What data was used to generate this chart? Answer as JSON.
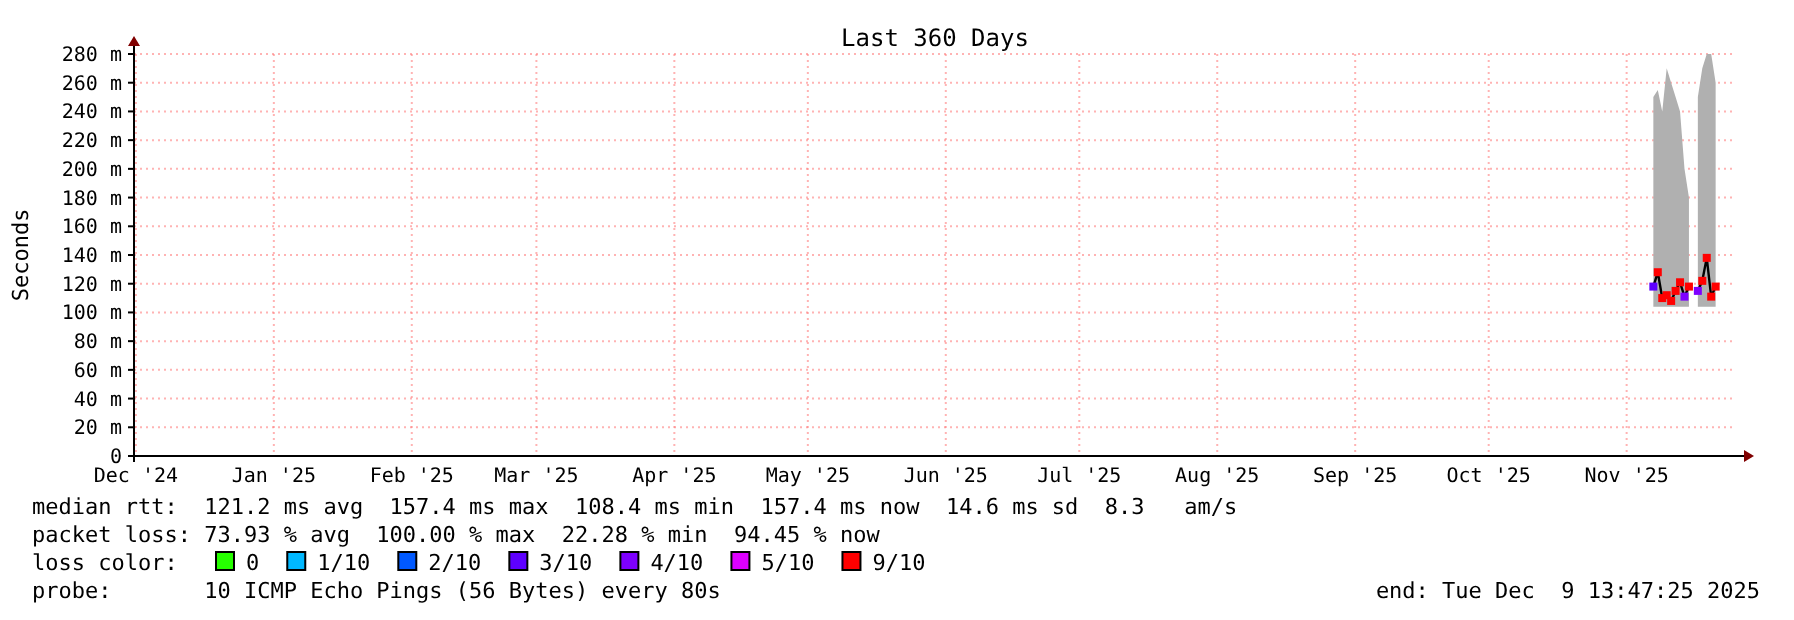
{
  "chart_data": {
    "type": "line",
    "title": "Last 360 Days",
    "ylabel": "Seconds",
    "x": [
      "2025-11-21",
      "2025-11-22",
      "2025-11-23",
      "2025-11-24",
      "2025-11-25",
      "2025-11-26",
      "2025-11-27",
      "2025-11-28",
      "2025-11-29",
      "2025-11-30",
      "2025-12-01",
      "2025-12-02",
      "2025-12-03",
      "2025-12-04",
      "2025-12-05"
    ],
    "xlim": [
      "2024-12-14T13:47",
      "2025-12-09T13:47"
    ],
    "xticks": [
      {
        "value": "2024-12-15",
        "label": "Dec '24"
      },
      {
        "value": "2025-01-15",
        "label": "Jan '25"
      },
      {
        "value": "2025-02-15",
        "label": "Feb '25"
      },
      {
        "value": "2025-03-15",
        "label": "Mar '25"
      },
      {
        "value": "2025-04-15",
        "label": "Apr '25"
      },
      {
        "value": "2025-05-15",
        "label": "May '25"
      },
      {
        "value": "2025-06-15",
        "label": "Jun '25"
      },
      {
        "value": "2025-07-15",
        "label": "Jul '25"
      },
      {
        "value": "2025-08-15",
        "label": "Aug '25"
      },
      {
        "value": "2025-09-15",
        "label": "Sep '25"
      },
      {
        "value": "2025-10-15",
        "label": "Oct '25"
      },
      {
        "value": "2025-11-15",
        "label": "Nov '25"
      }
    ],
    "ylim": [
      0,
      280
    ],
    "yticks": [
      0,
      {
        "value": 20,
        "label": "20 m"
      },
      {
        "value": 40,
        "label": "40 m"
      },
      {
        "value": 60,
        "label": "60 m"
      },
      {
        "value": 80,
        "label": "80 m"
      },
      {
        "value": 100,
        "label": "100 m"
      },
      {
        "value": 120,
        "label": "120 m"
      },
      {
        "value": 140,
        "label": "140 m"
      },
      {
        "value": 160,
        "label": "160 m"
      },
      {
        "value": 180,
        "label": "180 m"
      },
      {
        "value": 200,
        "label": "200 m"
      },
      {
        "value": 220,
        "label": "220 m"
      },
      {
        "value": 240,
        "label": "240 m"
      },
      {
        "value": 260,
        "label": "260 m"
      },
      {
        "value": 280,
        "label": "280 m"
      }
    ],
    "grid": true,
    "legend": "bottom",
    "legend_title": "loss color:",
    "series": [
      {
        "color": "#000000",
        "values": [
          118,
          128,
          110,
          112,
          108,
          115,
          121,
          111,
          118,
          null,
          115,
          122,
          138,
          111,
          118
        ],
        "lower": [
          104,
          104,
          104,
          104,
          104,
          104,
          104,
          104,
          104,
          null,
          104,
          104,
          104,
          104,
          104
        ],
        "upper": [
          250,
          255,
          240,
          270,
          260,
          250,
          240,
          200,
          180,
          null,
          250,
          270,
          280,
          280,
          260
        ]
      },
      {
        "type": "scatter",
        "name": "0",
        "color": "#26ff00",
        "values": [
          null,
          null,
          null,
          null,
          null,
          null,
          null,
          null,
          null,
          null,
          null,
          null,
          null,
          null,
          null
        ]
      },
      {
        "type": "scatter",
        "name": "1/10",
        "color": "#00b8ff",
        "values": [
          null,
          null,
          null,
          null,
          null,
          null,
          null,
          null,
          null,
          null,
          null,
          null,
          null,
          null,
          null
        ]
      },
      {
        "type": "scatter",
        "name": "2/10",
        "color": "#0059ff",
        "values": [
          null,
          null,
          null,
          null,
          null,
          null,
          null,
          null,
          null,
          null,
          null,
          null,
          null,
          null,
          null
        ]
      },
      {
        "type": "scatter",
        "name": "3/10",
        "color": "#5e00ff",
        "values": [
          118,
          null,
          null,
          null,
          null,
          null,
          null,
          null,
          null,
          null,
          null,
          null,
          null,
          null,
          null
        ]
      },
      {
        "type": "scatter",
        "name": "4/10",
        "color": "#7e00ff",
        "values": [
          null,
          null,
          null,
          null,
          null,
          null,
          null,
          111,
          null,
          null,
          115,
          null,
          null,
          null,
          null
        ]
      },
      {
        "type": "scatter",
        "name": "5/10",
        "color": "#dd00ff",
        "values": [
          null,
          null,
          null,
          null,
          null,
          null,
          null,
          null,
          null,
          null,
          null,
          null,
          null,
          null,
          null
        ]
      },
      {
        "type": "scatter",
        "name": "9/10",
        "color": "#ff0000",
        "values": [
          null,
          128,
          110,
          112,
          108,
          115,
          121,
          null,
          118,
          null,
          null,
          122,
          138,
          111,
          118
        ]
      }
    ],
    "annotations": [
      "median rtt:  121.2 ms avg  157.4 ms max  108.4 ms min  157.4 ms now  14.6 ms sd  8.3   am/s",
      "packet loss: 73.93 % avg  100.00 % max  22.28 % min  94.45 % now",
      "probe:       10 ICMP Echo Pings (56 Bytes) every 80s",
      "end: Tue Dec  9 13:47:25 2025"
    ]
  }
}
